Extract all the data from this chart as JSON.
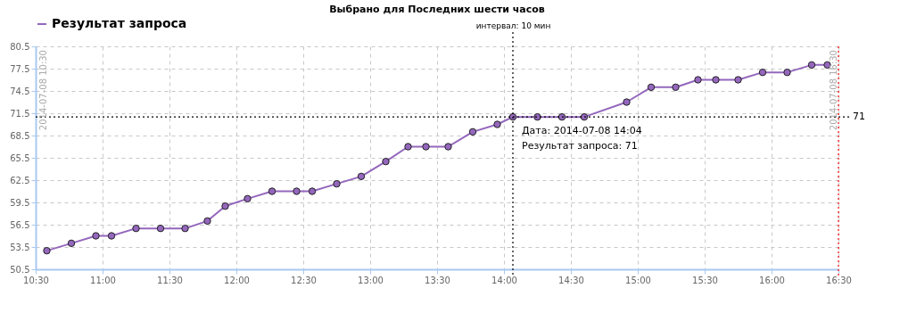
{
  "chart_data": {
    "type": "line",
    "title": "Выбрано для Последних шести часов",
    "x": [
      10.5833,
      10.7667,
      10.95,
      11.0667,
      11.25,
      11.4333,
      11.6167,
      11.7833,
      11.9167,
      12.0833,
      12.2667,
      12.45,
      12.5667,
      12.75,
      12.9333,
      13.1167,
      13.2833,
      13.4167,
      13.5833,
      13.7667,
      13.95,
      14.0667,
      14.25,
      14.4333,
      14.6,
      14.9167,
      15.1,
      15.2833,
      15.45,
      15.5833,
      15.75,
      15.9333,
      16.1167,
      16.3,
      16.4167
    ],
    "series": [
      {
        "name": "Результат запроса",
        "color": "#9467bd",
        "values": [
          53,
          54,
          55,
          55,
          56,
          56,
          56,
          57,
          59,
          60,
          61,
          61,
          61,
          62,
          63,
          65,
          67,
          67,
          67,
          69,
          70,
          71,
          71,
          71,
          71,
          73,
          75,
          75,
          76,
          76,
          76,
          77,
          77,
          78,
          78
        ]
      }
    ],
    "xlim": [
      10.5,
      16.5
    ],
    "xticks": [
      {
        "value": 10.5,
        "label": "10:30"
      },
      {
        "value": 11,
        "label": "11:00"
      },
      {
        "value": 11.5,
        "label": "11:30"
      },
      {
        "value": 12,
        "label": "12:00"
      },
      {
        "value": 12.5,
        "label": "12:30"
      },
      {
        "value": 13,
        "label": "13:00"
      },
      {
        "value": 13.5,
        "label": "13:30"
      },
      {
        "value": 14,
        "label": "14:00"
      },
      {
        "value": 14.5,
        "label": "14:30"
      },
      {
        "value": 15,
        "label": "15:00"
      },
      {
        "value": 15.5,
        "label": "15:30"
      },
      {
        "value": 16,
        "label": "16:00"
      },
      {
        "value": 16.5,
        "label": "16:30"
      }
    ],
    "ylim": [
      50.5,
      80.5
    ],
    "yticks": [
      50.5,
      53.5,
      56.5,
      59.5,
      62.5,
      65.5,
      68.5,
      71.5,
      74.5,
      77.5,
      80.5
    ],
    "grid": true,
    "legend": "top left",
    "marker": "circle",
    "line_style": "solid",
    "ref_lines": [
      {
        "axis": "y",
        "value": 71,
        "label": "71",
        "color": "#000000",
        "line_style": "dotted"
      },
      {
        "axis": "x",
        "value": 14.0667,
        "color": "#000000",
        "line_style": "dotted"
      },
      {
        "axis": "x",
        "value": 16.5,
        "label": "2014-07-08 16:30",
        "color": "#ff0000",
        "line_style": "dotted"
      }
    ],
    "annotations": [
      "2014-07-08 10:30",
      "интервал: 10 мин",
      {
        "text": "Дата: 2014-07-08 14:04\nРезультат запроса: 71",
        "x": 14.0667,
        "y": 71
      }
    ]
  }
}
